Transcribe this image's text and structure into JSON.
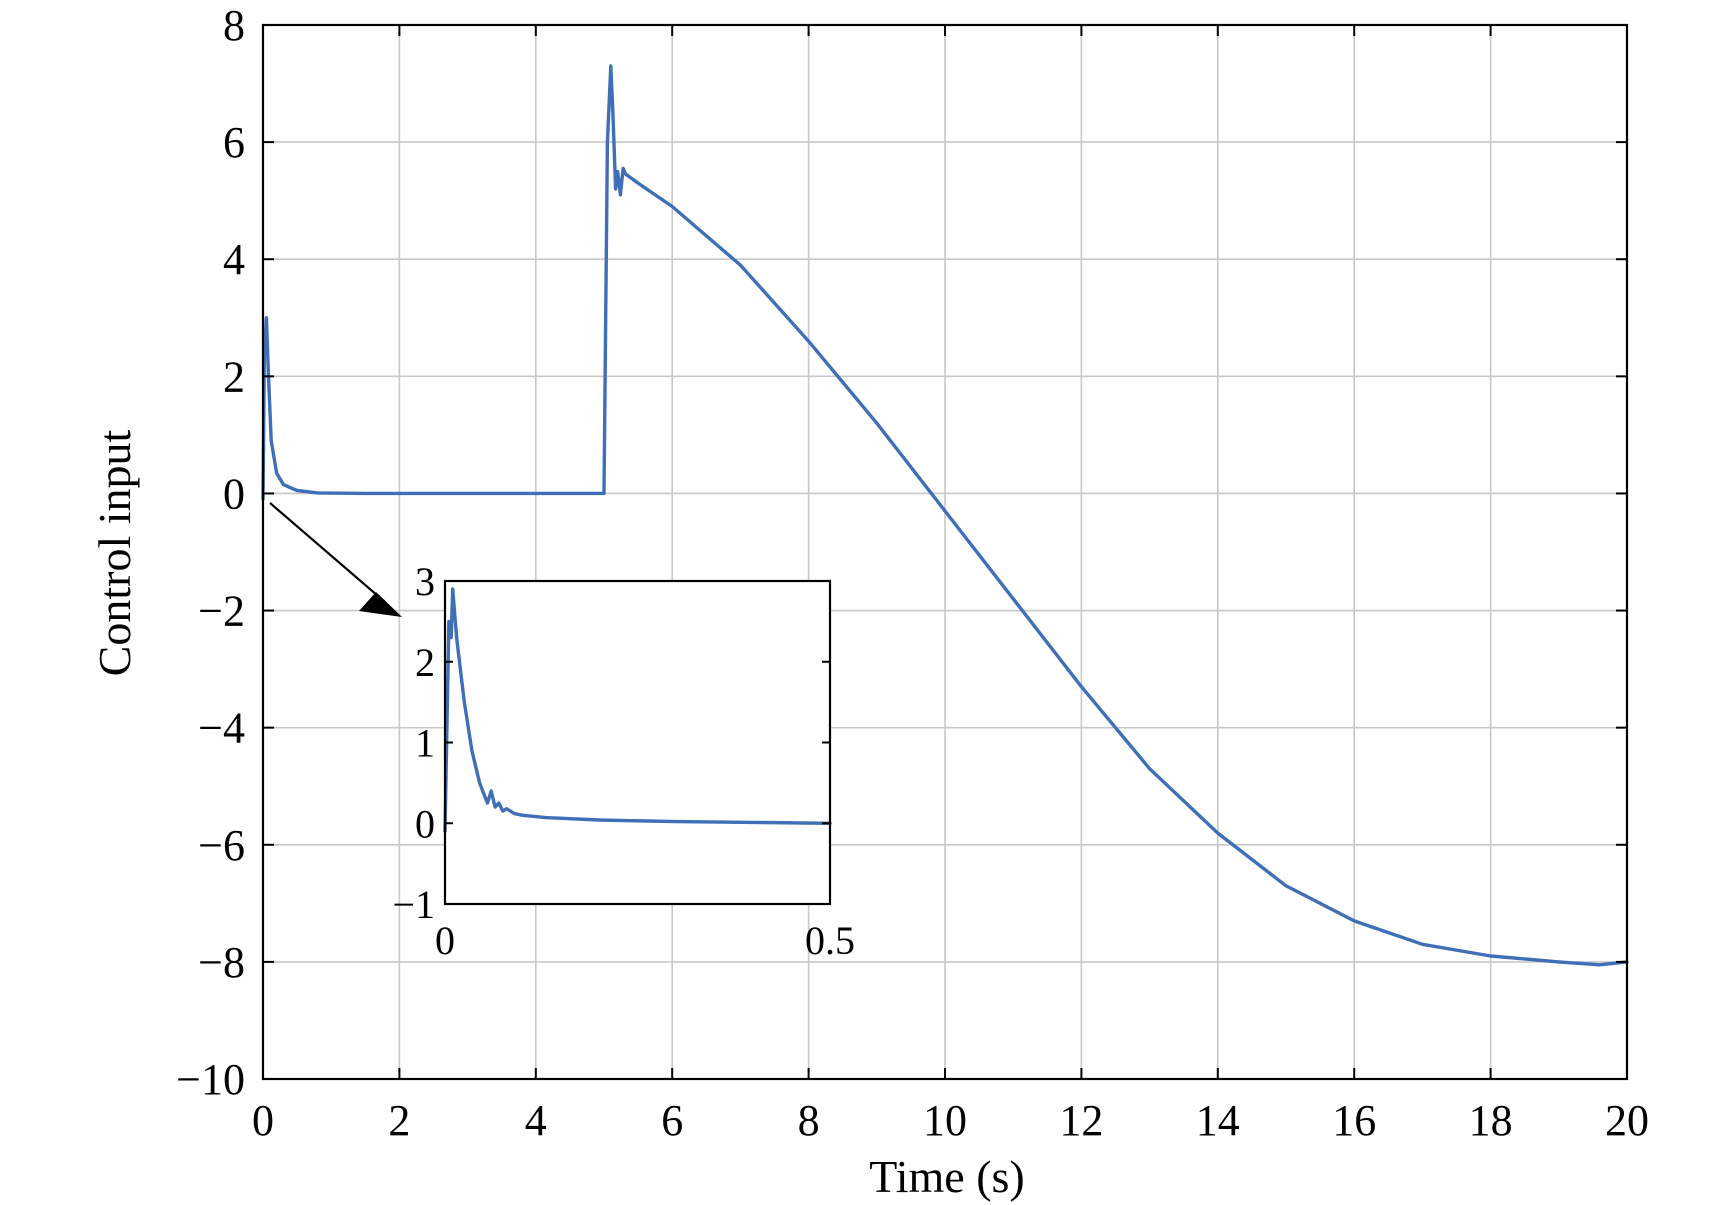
{
  "chart_data": {
    "type": "line",
    "title": "",
    "xlabel": "Time (s)",
    "ylabel": "Control input",
    "xlim": [
      0,
      20
    ],
    "ylim": [
      -10,
      8
    ],
    "xticks": [
      0,
      2,
      4,
      6,
      8,
      10,
      12,
      14,
      16,
      18,
      20
    ],
    "yticks": [
      8,
      6,
      4,
      2,
      0,
      -2,
      -4,
      -6,
      -8,
      -10
    ],
    "xtick_labels": [
      "0",
      "2",
      "4",
      "6",
      "8",
      "10",
      "12",
      "14",
      "16",
      "18",
      "20"
    ],
    "ytick_labels": [
      "8",
      "6",
      "4",
      "2",
      "0",
      "−2",
      "−4",
      "−6",
      "−8",
      "−10"
    ],
    "grid": true,
    "color": "#3f6fb7",
    "series": [
      {
        "x": [
          0,
          0.02,
          0.05,
          0.08,
          0.12,
          0.2,
          0.3,
          0.5,
          0.8,
          1.5,
          3,
          5.0,
          5.02,
          5.05,
          5.1,
          5.13,
          5.17,
          5.2,
          5.24,
          5.28,
          5.32,
          5.5,
          6,
          7,
          8,
          9,
          10,
          11,
          12,
          13,
          14,
          15,
          16,
          17,
          18,
          19,
          19.6,
          20
        ],
        "y": [
          -0.1,
          2.4,
          3.0,
          2.0,
          0.9,
          0.35,
          0.15,
          0.05,
          0.01,
          0,
          0,
          0,
          2.5,
          6.0,
          7.3,
          6.5,
          5.2,
          5.5,
          5.1,
          5.55,
          5.45,
          5.3,
          4.9,
          3.9,
          2.6,
          1.2,
          -0.3,
          -1.8,
          -3.3,
          -4.7,
          -5.8,
          -6.7,
          -7.3,
          -7.7,
          -7.9,
          -8.0,
          -8.05,
          -8.0
        ]
      }
    ],
    "inset": {
      "xlim": [
        0,
        0.5
      ],
      "ylim": [
        -1,
        3
      ],
      "xtick_labels": [
        "0",
        "0.5"
      ],
      "ytick_labels": [
        "3",
        "2",
        "1",
        "0",
        "−1"
      ],
      "series": [
        {
          "x": [
            0,
            0.005,
            0.008,
            0.01,
            0.015,
            0.025,
            0.035,
            0.045,
            0.055,
            0.06,
            0.065,
            0.07,
            0.075,
            0.08,
            0.09,
            0.1,
            0.13,
            0.2,
            0.3,
            0.4,
            0.5
          ],
          "y": [
            -0.1,
            2.5,
            2.3,
            2.9,
            2.3,
            1.5,
            0.9,
            0.5,
            0.25,
            0.4,
            0.2,
            0.25,
            0.15,
            0.18,
            0.12,
            0.1,
            0.07,
            0.04,
            0.02,
            0.01,
            0.0
          ]
        }
      ]
    }
  }
}
